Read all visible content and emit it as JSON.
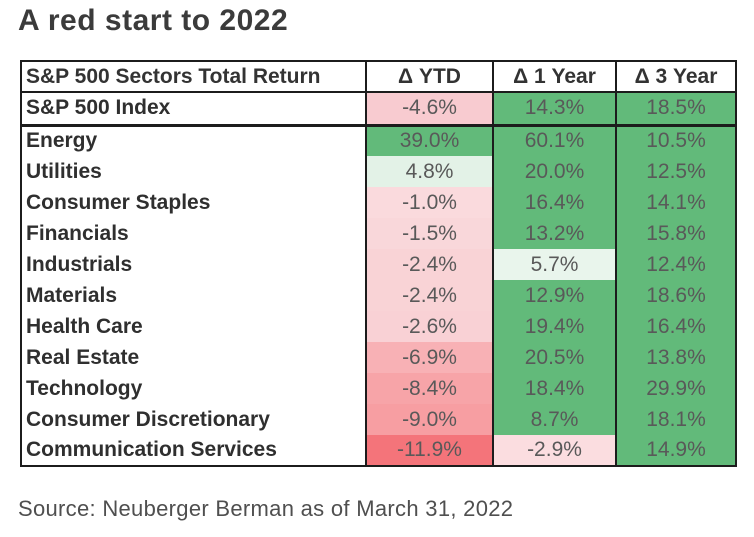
{
  "title": "A red start to 2022",
  "source": "Source: Neuberger Berman as of March 31, 2022",
  "colors": {
    "green_solid": "#62ba7a",
    "green_faint": "#e3f2e7",
    "red_strong": "#f4747a",
    "pink_light": "#f9d3d6",
    "border": "#1c1c1c"
  },
  "table": {
    "header": {
      "label": "S&P 500 Sectors Total Return",
      "cols": [
        "Δ YTD",
        "Δ 1 Year",
        "Δ 3 Year"
      ]
    },
    "index_row": {
      "label": "S&P 500 Index",
      "ytd": {
        "v": "-4.6%",
        "bg": "#f8cbd0"
      },
      "y1": {
        "v": "14.3%",
        "bg": "#62ba7a"
      },
      "y3": {
        "v": "18.5%",
        "bg": "#62ba7a"
      }
    },
    "rows": [
      {
        "label": "Energy",
        "ytd": {
          "v": "39.0%",
          "bg": "#62ba7a"
        },
        "y1": {
          "v": "60.1%",
          "bg": "#62ba7a"
        },
        "y3": {
          "v": "10.5%",
          "bg": "#62ba7a"
        }
      },
      {
        "label": "Utilities",
        "ytd": {
          "v": "4.8%",
          "bg": "#e3f2e7"
        },
        "y1": {
          "v": "20.0%",
          "bg": "#62ba7a"
        },
        "y3": {
          "v": "12.5%",
          "bg": "#62ba7a"
        }
      },
      {
        "label": "Consumer Staples",
        "ytd": {
          "v": "-1.0%",
          "bg": "#fadadd"
        },
        "y1": {
          "v": "16.4%",
          "bg": "#62ba7a"
        },
        "y3": {
          "v": "14.1%",
          "bg": "#62ba7a"
        }
      },
      {
        "label": "Financials",
        "ytd": {
          "v": "-1.5%",
          "bg": "#f9d7da"
        },
        "y1": {
          "v": "13.2%",
          "bg": "#62ba7a"
        },
        "y3": {
          "v": "15.8%",
          "bg": "#62ba7a"
        }
      },
      {
        "label": "Industrials",
        "ytd": {
          "v": "-2.4%",
          "bg": "#f9d3d6"
        },
        "y1": {
          "v": "5.7%",
          "bg": "#e9f5ec"
        },
        "y3": {
          "v": "12.4%",
          "bg": "#62ba7a"
        }
      },
      {
        "label": "Materials",
        "ytd": {
          "v": "-2.4%",
          "bg": "#f9d3d6"
        },
        "y1": {
          "v": "12.9%",
          "bg": "#62ba7a"
        },
        "y3": {
          "v": "18.6%",
          "bg": "#62ba7a"
        }
      },
      {
        "label": "Health Care",
        "ytd": {
          "v": "-2.6%",
          "bg": "#f9d1d5"
        },
        "y1": {
          "v": "19.4%",
          "bg": "#62ba7a"
        },
        "y3": {
          "v": "16.4%",
          "bg": "#62ba7a"
        }
      },
      {
        "label": "Real Estate",
        "ytd": {
          "v": "-6.9%",
          "bg": "#f8b1b5"
        },
        "y1": {
          "v": "20.5%",
          "bg": "#62ba7a"
        },
        "y3": {
          "v": "13.8%",
          "bg": "#62ba7a"
        }
      },
      {
        "label": "Technology",
        "ytd": {
          "v": "-8.4%",
          "bg": "#f7a4a8"
        },
        "y1": {
          "v": "18.4%",
          "bg": "#62ba7a"
        },
        "y3": {
          "v": "29.9%",
          "bg": "#62ba7a"
        }
      },
      {
        "label": "Consumer Discretionary",
        "ytd": {
          "v": "-9.0%",
          "bg": "#f79ea2"
        },
        "y1": {
          "v": "8.7%",
          "bg": "#62ba7a"
        },
        "y3": {
          "v": "18.1%",
          "bg": "#62ba7a"
        }
      },
      {
        "label": "Communication Services",
        "ytd": {
          "v": "-11.9%",
          "bg": "#f4747a"
        },
        "y1": {
          "v": "-2.9%",
          "bg": "#fbdde0"
        },
        "y3": {
          "v": "14.9%",
          "bg": "#62ba7a"
        }
      }
    ]
  },
  "chart_data": {
    "type": "table",
    "title": "A red start to 2022",
    "columns": [
      "S&P 500 Sectors Total Return",
      "Δ YTD",
      "Δ 1 Year",
      "Δ 3 Year"
    ],
    "rows": [
      [
        "S&P 500 Index",
        -4.6,
        14.3,
        18.5
      ],
      [
        "Energy",
        39.0,
        60.1,
        10.5
      ],
      [
        "Utilities",
        4.8,
        20.0,
        12.5
      ],
      [
        "Consumer Staples",
        -1.0,
        16.4,
        14.1
      ],
      [
        "Financials",
        -1.5,
        13.2,
        15.8
      ],
      [
        "Industrials",
        -2.4,
        5.7,
        12.4
      ],
      [
        "Materials",
        -2.4,
        12.9,
        18.6
      ],
      [
        "Health Care",
        -2.6,
        19.4,
        16.4
      ],
      [
        "Real Estate",
        -6.9,
        20.5,
        13.8
      ],
      [
        "Technology",
        -8.4,
        18.4,
        29.9
      ],
      [
        "Consumer Discretionary",
        -9.0,
        8.7,
        18.1
      ],
      [
        "Communication Services",
        -11.9,
        -2.9,
        14.9
      ]
    ],
    "units": "percent",
    "color_coding": "red (negative/low) to green (positive/high) cell fill",
    "source": "Source: Neuberger Berman as of March 31, 2022"
  }
}
